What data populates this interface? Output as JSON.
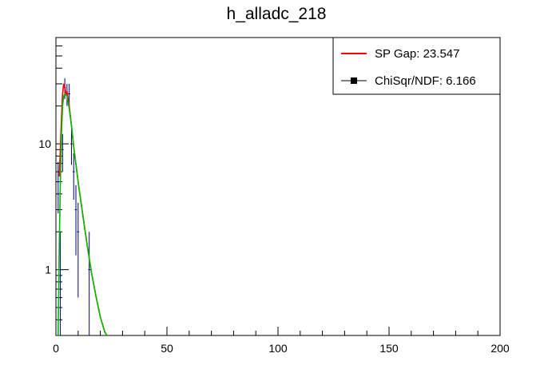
{
  "chart_data": {
    "type": "line",
    "title": "h_alladc_218",
    "xlabel": "",
    "ylabel": "",
    "xlim": [
      0,
      200
    ],
    "ylim": [
      0.3,
      70
    ],
    "y_scale": "log",
    "x_ticks": [
      0,
      50,
      100,
      150,
      200
    ],
    "x_tick_labels": [
      "0",
      "50",
      "100",
      "150",
      "200"
    ],
    "y_major_ticks": [
      1,
      10
    ],
    "y_tick_labels": [
      "1",
      "10"
    ],
    "grid": false,
    "legend_position": "top-right",
    "legend": [
      {
        "label": "SP Gap: 23.547",
        "style": "line",
        "color": "#ff0000"
      },
      {
        "label": "ChiSqr/NDF: 6.166",
        "style": "marker-line",
        "color": "#000000"
      }
    ],
    "histogram": {
      "color": "#000088",
      "points": [
        {
          "x": 1,
          "y": 5.0,
          "err": 2.2
        },
        {
          "x": 2,
          "y": 1.0,
          "err": 1.0
        },
        {
          "x": 3,
          "y": 9.0,
          "err": 3.0
        },
        {
          "x": 4,
          "y": 28.0,
          "err": 5.3
        },
        {
          "x": 5,
          "y": 25.0,
          "err": 5.0
        },
        {
          "x": 6,
          "y": 25.0,
          "err": 5.0
        },
        {
          "x": 7,
          "y": 10.0,
          "err": 3.2
        },
        {
          "x": 8,
          "y": 6.0,
          "err": 2.4
        },
        {
          "x": 9,
          "y": 3.0,
          "err": 1.7
        },
        {
          "x": 10,
          "y": 2.0,
          "err": 1.4
        },
        {
          "x": 15,
          "y": 1.0,
          "err": 1.0
        }
      ]
    },
    "series": [
      {
        "color": "#ff0000",
        "x": [
          1.5,
          2.0,
          2.5,
          3.0,
          3.5,
          4.0,
          4.5,
          5.0,
          6.0,
          7.0,
          8.0,
          10.0,
          12.0,
          14.0,
          16.0,
          18.0,
          20.0,
          22.0,
          23.0
        ],
        "y": [
          5.5,
          9.0,
          16.0,
          25.0,
          30.0,
          28.5,
          25.0,
          26.0,
          20.0,
          14.0,
          9.5,
          5.0,
          2.8,
          1.6,
          0.95,
          0.62,
          0.42,
          0.32,
          0.3
        ]
      },
      {
        "color": "#00bb00",
        "x": [
          1.0,
          1.5,
          2.0,
          2.5,
          3.0,
          3.5,
          4.0,
          5.0,
          6.0,
          7.0,
          8.0,
          10.0,
          12.0,
          14.0,
          16.0,
          18.0,
          20.0,
          22.0,
          23.0
        ],
        "y": [
          0.3,
          1.5,
          5.0,
          12.0,
          20.0,
          24.0,
          25.0,
          24.0,
          19.0,
          14.0,
          9.5,
          5.0,
          2.8,
          1.6,
          0.95,
          0.62,
          0.42,
          0.32,
          0.3
        ]
      }
    ]
  }
}
